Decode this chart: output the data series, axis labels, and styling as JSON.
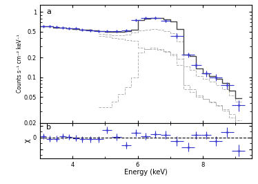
{
  "title_a": "a",
  "title_b": "b",
  "xlabel": "Energy (keV)",
  "ylabel_a": "Counts s⁻¹ cm⁻² keV⁻¹",
  "ylabel_b": "χ",
  "bg_color": "#ffffff",
  "main_step_x": [
    3.0,
    3.2,
    3.4,
    3.6,
    3.8,
    4.0,
    4.2,
    4.4,
    4.6,
    4.8,
    5.0,
    5.2,
    5.4,
    5.6,
    5.8,
    6.0,
    6.2,
    6.4,
    6.6,
    6.8,
    7.0,
    7.2,
    7.4,
    7.6,
    7.8,
    8.0,
    8.2,
    8.4,
    8.6,
    8.8,
    9.0,
    9.2
  ],
  "main_step_y": [
    0.6,
    0.6,
    0.58,
    0.57,
    0.56,
    0.55,
    0.54,
    0.53,
    0.52,
    0.51,
    0.5,
    0.5,
    0.5,
    0.51,
    0.54,
    0.75,
    0.8,
    0.82,
    0.82,
    0.78,
    0.72,
    0.55,
    0.22,
    0.21,
    0.135,
    0.115,
    0.105,
    0.095,
    0.082,
    0.062,
    0.048,
    0.033
  ],
  "data_x": [
    3.1,
    3.3,
    3.5,
    3.7,
    3.9,
    4.1,
    4.3,
    4.55,
    4.8,
    5.05,
    5.35,
    5.65,
    5.95,
    6.25,
    6.55,
    6.85,
    7.2,
    7.55,
    7.8,
    8.1,
    8.4,
    8.75,
    9.1
  ],
  "data_y": [
    0.6,
    0.6,
    0.585,
    0.575,
    0.565,
    0.555,
    0.54,
    0.525,
    0.515,
    0.505,
    0.505,
    0.52,
    0.76,
    0.81,
    0.82,
    0.73,
    0.43,
    0.22,
    0.155,
    0.115,
    0.1,
    0.075,
    0.037
  ],
  "data_xerr": [
    0.1,
    0.1,
    0.1,
    0.1,
    0.1,
    0.1,
    0.1,
    0.15,
    0.15,
    0.15,
    0.15,
    0.15,
    0.15,
    0.15,
    0.15,
    0.15,
    0.2,
    0.2,
    0.15,
    0.15,
    0.2,
    0.2,
    0.2
  ],
  "data_yerr": [
    0.012,
    0.012,
    0.012,
    0.012,
    0.012,
    0.012,
    0.012,
    0.012,
    0.012,
    0.012,
    0.015,
    0.018,
    0.02,
    0.022,
    0.022,
    0.035,
    0.04,
    0.02,
    0.014,
    0.013,
    0.013,
    0.009,
    0.007
  ],
  "dashed1_x": [
    4.8,
    5.0,
    5.2,
    5.4,
    5.6,
    5.8,
    6.0,
    6.2,
    6.4,
    6.6,
    6.8,
    7.0,
    7.2,
    7.4,
    7.6,
    7.8,
    8.0,
    8.2,
    8.4,
    8.6,
    8.8,
    9.0,
    9.2
  ],
  "dashed1_y": [
    0.46,
    0.45,
    0.44,
    0.44,
    0.45,
    0.48,
    0.52,
    0.54,
    0.55,
    0.54,
    0.51,
    0.47,
    0.35,
    0.145,
    0.13,
    0.105,
    0.095,
    0.085,
    0.075,
    0.065,
    0.052,
    0.042,
    0.028
  ],
  "dashed2_x": [
    4.8,
    5.0,
    5.2,
    5.4,
    5.6,
    5.8,
    6.0,
    6.2,
    6.4,
    6.6,
    6.8,
    7.0,
    7.2,
    7.4,
    7.6,
    7.8,
    8.0,
    8.2,
    8.4,
    8.6,
    8.8,
    9.0,
    9.2
  ],
  "dashed2_y": [
    0.035,
    0.035,
    0.042,
    0.055,
    0.07,
    0.1,
    0.24,
    0.27,
    0.28,
    0.27,
    0.25,
    0.23,
    0.19,
    0.075,
    0.065,
    0.052,
    0.047,
    0.042,
    0.037,
    0.032,
    0.027,
    0.022,
    0.017
  ],
  "dashed3_x": [
    4.8,
    5.0,
    5.2,
    5.4,
    5.6,
    5.8,
    6.0,
    6.2,
    6.4,
    6.6,
    6.8,
    7.0,
    7.2,
    7.4,
    7.6,
    7.8,
    8.0,
    8.2,
    8.4,
    8.6,
    8.8,
    9.0,
    9.2
  ],
  "dashed3_y": [
    0.43,
    0.42,
    0.4,
    0.385,
    0.375,
    0.365,
    0.285,
    0.27,
    0.27,
    0.265,
    0.245,
    0.215,
    0.155,
    0.065,
    0.06,
    0.05,
    0.046,
    0.041,
    0.036,
    0.031,
    0.024,
    0.019,
    0.013
  ],
  "chi_x": [
    3.1,
    3.3,
    3.5,
    3.7,
    3.9,
    4.1,
    4.3,
    4.55,
    4.8,
    5.05,
    5.35,
    5.65,
    5.95,
    6.25,
    6.55,
    6.85,
    7.2,
    7.55,
    7.8,
    8.1,
    8.4,
    8.75,
    9.1
  ],
  "chi_y": [
    0.02,
    -0.02,
    -0.02,
    0.02,
    0.01,
    -0.01,
    -0.03,
    -0.03,
    -0.03,
    0.13,
    0.01,
    -0.13,
    0.08,
    0.02,
    0.06,
    0.04,
    -0.06,
    -0.16,
    0.04,
    0.04,
    -0.06,
    0.09,
    -0.22
  ],
  "chi_xerr": [
    0.1,
    0.1,
    0.1,
    0.1,
    0.1,
    0.1,
    0.1,
    0.15,
    0.15,
    0.15,
    0.15,
    0.15,
    0.15,
    0.15,
    0.15,
    0.15,
    0.2,
    0.2,
    0.15,
    0.15,
    0.2,
    0.2,
    0.2
  ],
  "chi_yerr": [
    0.05,
    0.05,
    0.05,
    0.05,
    0.05,
    0.05,
    0.05,
    0.05,
    0.05,
    0.06,
    0.06,
    0.06,
    0.06,
    0.06,
    0.06,
    0.07,
    0.08,
    0.08,
    0.06,
    0.06,
    0.08,
    0.08,
    0.1
  ],
  "data_color": "#3333cc",
  "model_color": "#444444",
  "dashed_color": "#aaaaaa",
  "xlim": [
    3.0,
    9.5
  ],
  "ylim_a": [
    0.02,
    1.3
  ],
  "ylim_b": [
    -0.35,
    0.25
  ]
}
